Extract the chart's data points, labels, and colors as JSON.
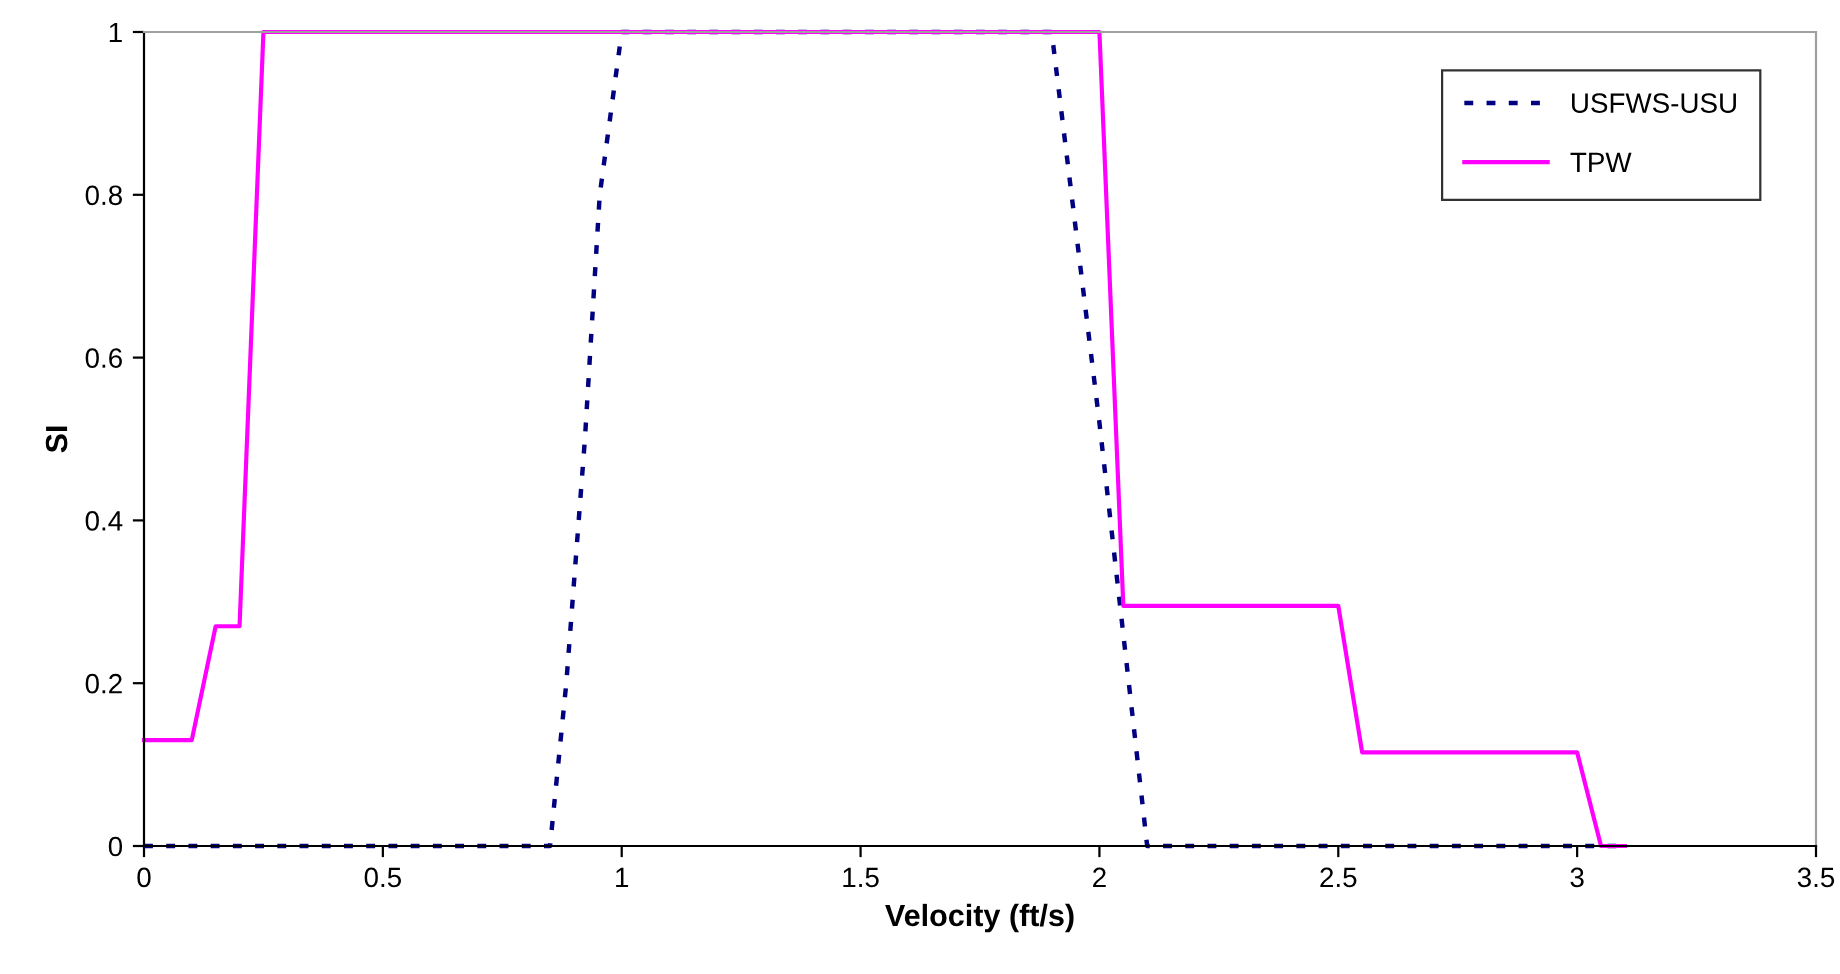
{
  "chart_data": {
    "type": "line",
    "xlabel": "Velocity (ft/s)",
    "ylabel": "SI",
    "xlim": [
      0,
      3.5
    ],
    "xticks": [
      0,
      0.5,
      1,
      1.5,
      2,
      2.5,
      3,
      3.5
    ],
    "ylim": [
      0,
      1
    ],
    "yticks": [
      0,
      0.2,
      0.4,
      0.6,
      0.8,
      1
    ],
    "grid": false,
    "legend": "top right",
    "marker": "none",
    "series": [
      {
        "name": "USFWS-USU",
        "color": "#000080",
        "line_style": "dotted",
        "x": [
          0,
          0.85,
          0.884,
          0.923,
          0.954,
          1.0,
          1.9,
          2.0,
          2.1,
          3.1
        ],
        "values": [
          0,
          0,
          0.2,
          0.5,
          0.8,
          1,
          1,
          0.52,
          0,
          0
        ]
      },
      {
        "name": "TPW",
        "color": "#ff00ff",
        "line_style": "solid",
        "x": [
          0,
          0.1,
          0.15,
          0.2,
          0.25,
          2.0,
          2.05,
          2.5,
          2.55,
          3.0,
          3.05,
          3.1
        ],
        "values": [
          0.13,
          0.13,
          0.27,
          0.27,
          1,
          1,
          0.295,
          0.295,
          0.115,
          0.115,
          0,
          0
        ]
      }
    ]
  }
}
